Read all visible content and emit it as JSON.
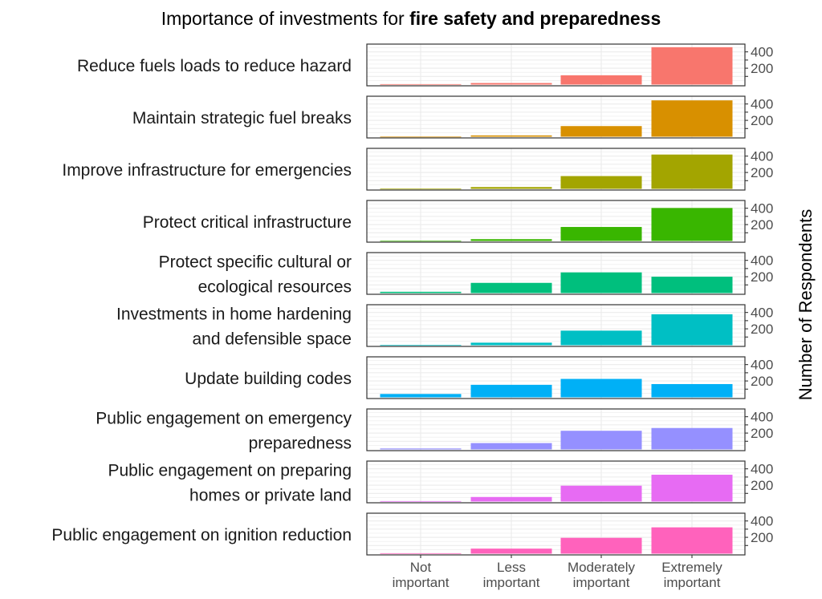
{
  "chart_data": {
    "type": "bar",
    "title_prefix": "Importance of investments for ",
    "title_bold": "fire safety and preparedness",
    "xlabel": "",
    "ylabel": "Number of Respondents",
    "categories": [
      "Not\nimportant",
      "Less\nimportant",
      "Moderately\nimportant",
      "Extremely\nimportant"
    ],
    "ylim": [
      0,
      480
    ],
    "yticks": [
      200,
      400
    ],
    "y_minor_ticks": [
      100,
      300
    ],
    "y_axis_position": "right",
    "grid": true,
    "legend": "none",
    "facets": [
      {
        "name": "Reduce fuels loads to reduce hazard",
        "color": "#F8766D",
        "values": [
          6,
          19,
          114,
          457
        ]
      },
      {
        "name": "Maintain strategic fuel breaks",
        "color": "#D89000",
        "values": [
          1,
          16,
          130,
          444
        ]
      },
      {
        "name": "Improve infrastructure for emergencies",
        "color": "#A3A500",
        "values": [
          2,
          22,
          156,
          419
        ]
      },
      {
        "name": "Protect critical infrastructure",
        "color": "#39B600",
        "values": [
          2,
          22,
          171,
          403
        ]
      },
      {
        "name": "Protect specific cultural or\necological resources",
        "color": "#00BF7D",
        "values": [
          16,
          125,
          253,
          200
        ]
      },
      {
        "name": "Investments in home hardening\nand defensible space",
        "color": "#00BFC4",
        "values": [
          2,
          31,
          178,
          378
        ]
      },
      {
        "name": "Update building codes",
        "color": "#00B0F6",
        "values": [
          41,
          153,
          225,
          162
        ]
      },
      {
        "name": "Public engagement on emergency\npreparedness",
        "color": "#9590FF",
        "values": [
          12,
          78,
          228,
          262
        ]
      },
      {
        "name": "Public engagement on preparing\nhomes or private land",
        "color": "#E76BF3",
        "values": [
          6,
          56,
          194,
          328
        ]
      },
      {
        "name": "Public engagement on ignition reduction",
        "color": "#FF62BC",
        "values": [
          6,
          62,
          194,
          322
        ]
      }
    ]
  }
}
